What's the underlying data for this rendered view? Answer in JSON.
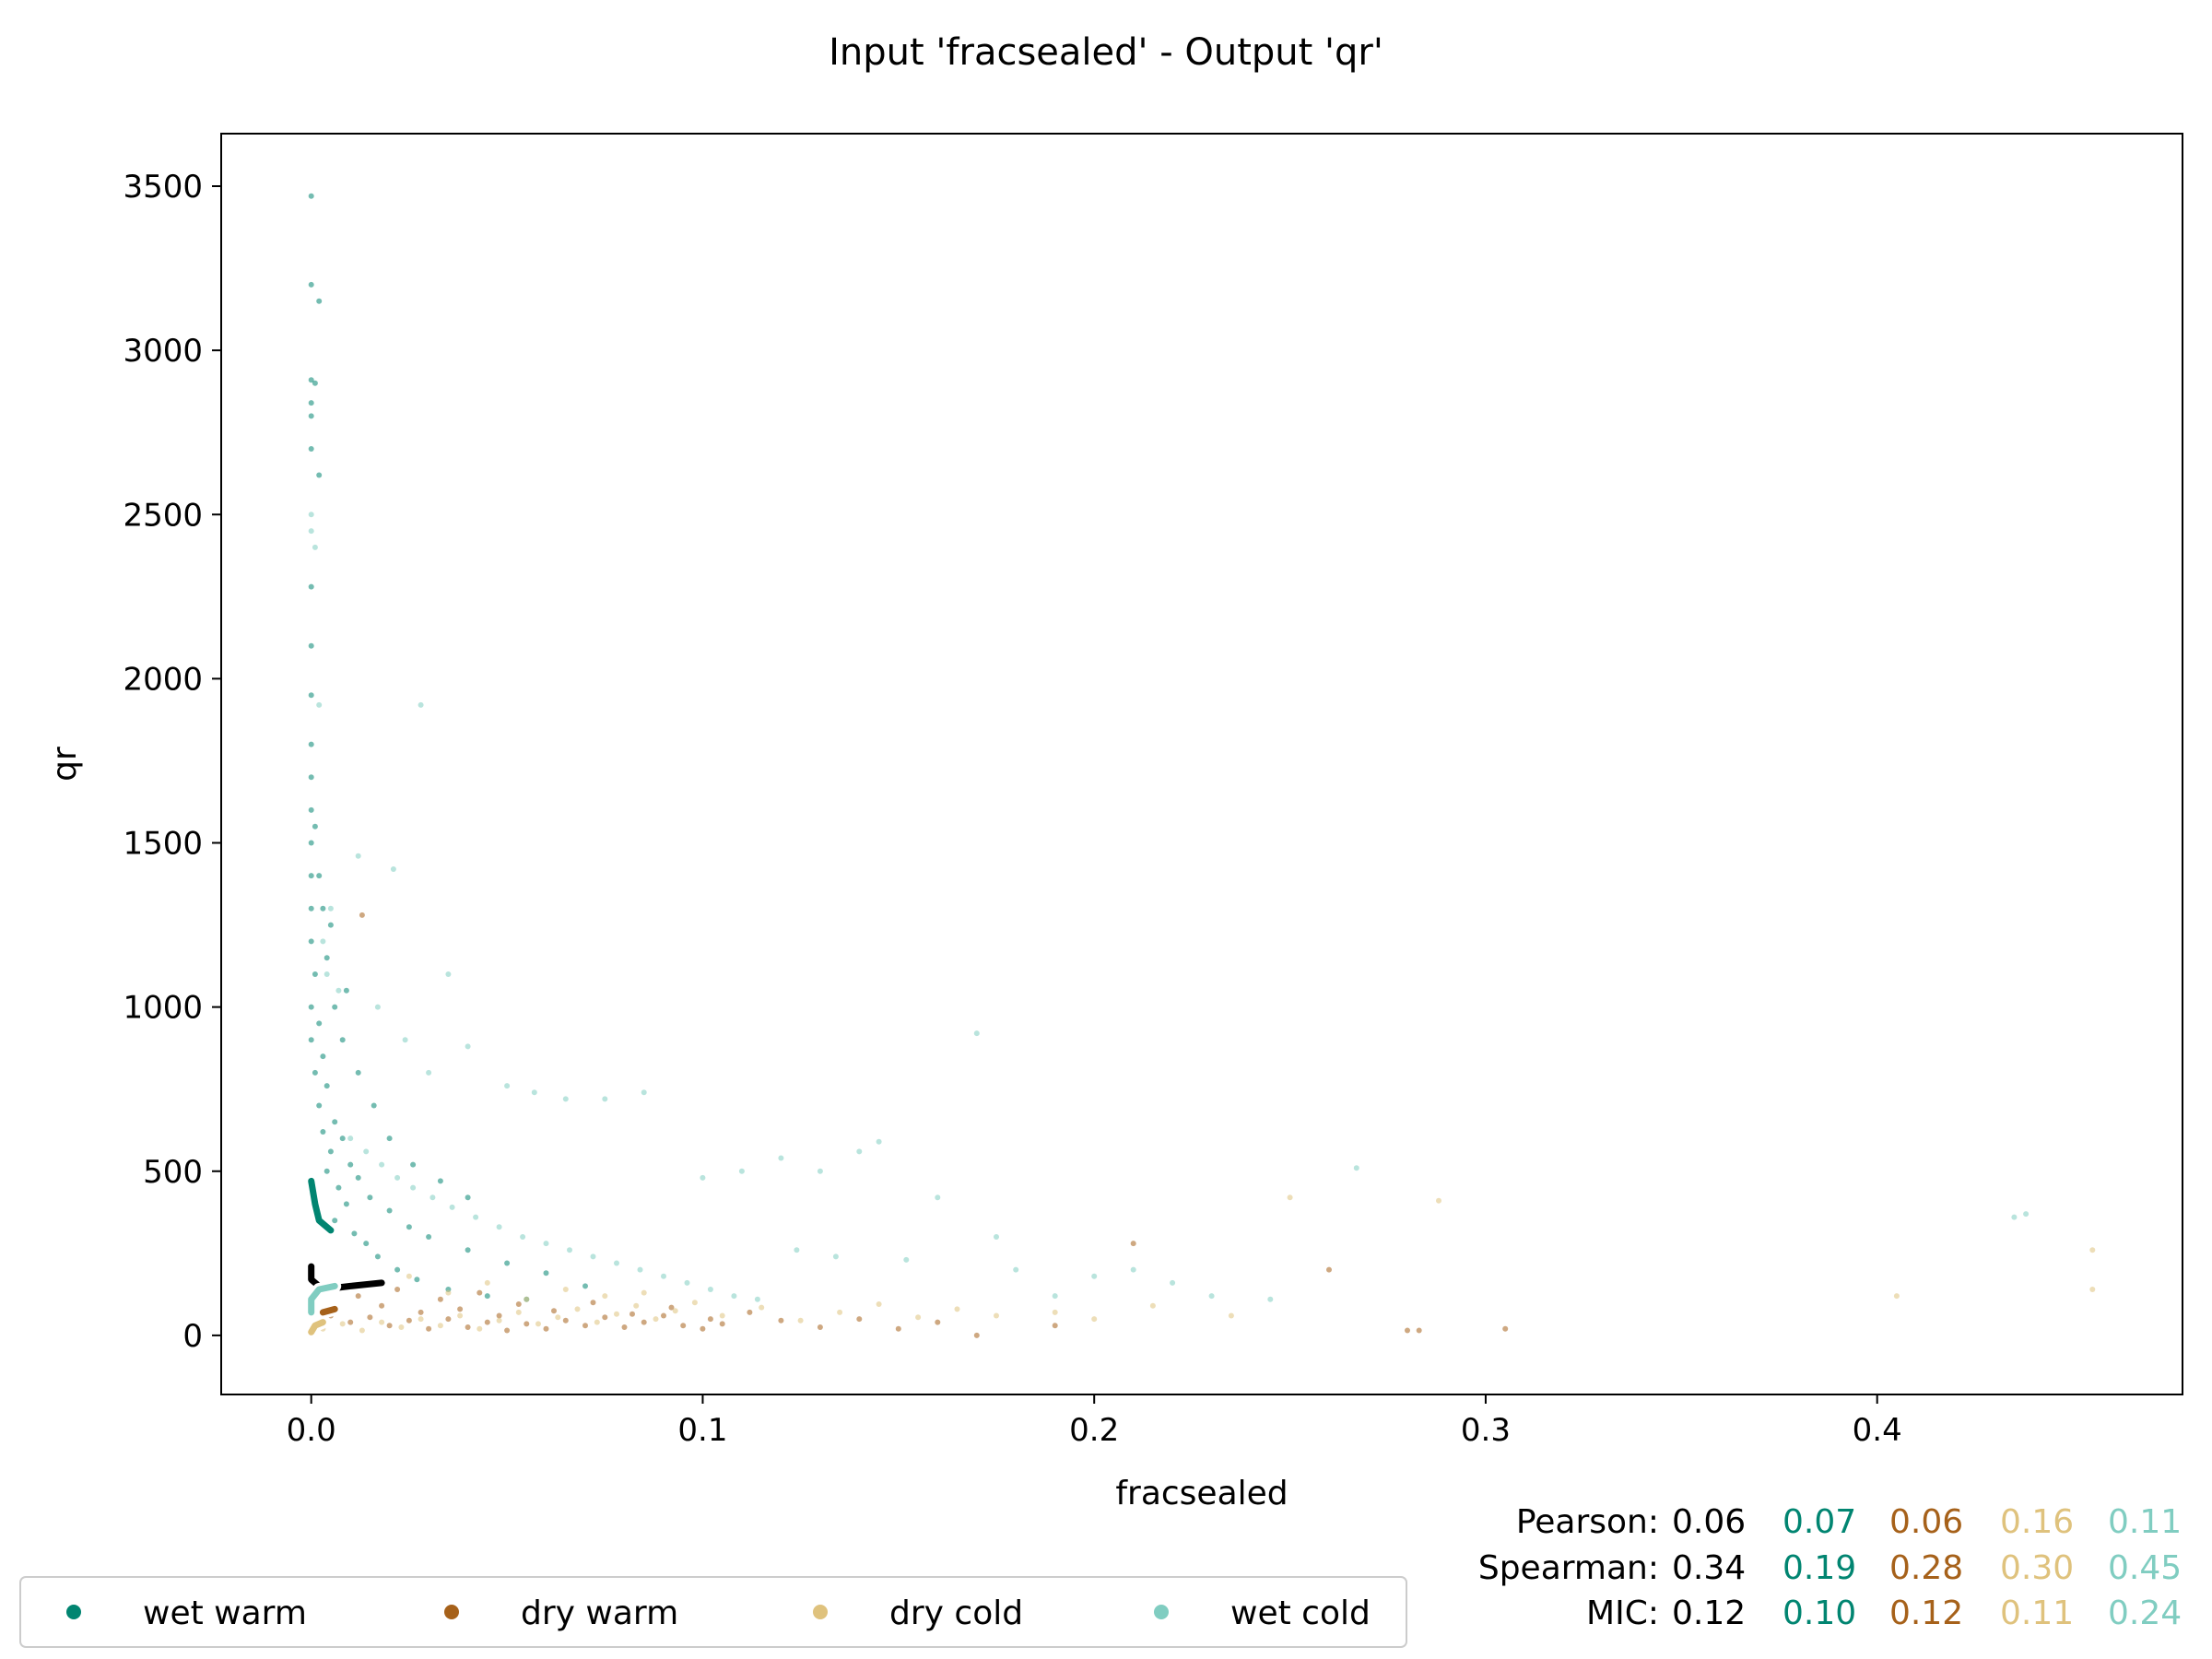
{
  "colors": {
    "wet_warm": "#018571",
    "dry_warm": "#a6611a",
    "dry_cold": "#dfc27d",
    "wet_cold": "#80cdc1",
    "all": "#000000"
  },
  "chart_data": {
    "type": "scatter",
    "title": "Input 'fracsealed' - Output 'qr'",
    "xlabel": "fracsealed",
    "ylabel": "qr",
    "xlim": [
      -0.023,
      0.478
    ],
    "ylim": [
      -180,
      3660
    ],
    "xticks": [
      0.0,
      0.1,
      0.2,
      0.3,
      0.4
    ],
    "xtick_labels": [
      "0.0",
      "0.1",
      "0.2",
      "0.3",
      "0.4"
    ],
    "yticks": [
      0,
      500,
      1000,
      1500,
      2000,
      2500,
      3000,
      3500
    ],
    "ytick_labels": [
      "0",
      "500",
      "1000",
      "1500",
      "2000",
      "2500",
      "3000",
      "3500"
    ],
    "grid": false,
    "legend_position": "bottom-left",
    "series": [
      {
        "name": "wet warm",
        "color": "#018571",
        "points": [
          [
            0.0,
            3470
          ],
          [
            0.0,
            3200
          ],
          [
            0.002,
            3150
          ],
          [
            0.0,
            2910
          ],
          [
            0.001,
            2900
          ],
          [
            0.0,
            2840
          ],
          [
            0.0,
            2800
          ],
          [
            0.0,
            2700
          ],
          [
            0.002,
            2620
          ],
          [
            0.0,
            2280
          ],
          [
            0.0,
            2100
          ],
          [
            0.0,
            1950
          ],
          [
            0.0,
            1800
          ],
          [
            0.0,
            1700
          ],
          [
            0.0,
            1600
          ],
          [
            0.0,
            1500
          ],
          [
            0.0,
            1400
          ],
          [
            0.0,
            1300
          ],
          [
            0.0,
            1200
          ],
          [
            0.001,
            1100
          ],
          [
            0.0,
            1000
          ],
          [
            0.002,
            950
          ],
          [
            0.0,
            900
          ],
          [
            0.003,
            850
          ],
          [
            0.001,
            800
          ],
          [
            0.004,
            760
          ],
          [
            0.002,
            700
          ],
          [
            0.006,
            650
          ],
          [
            0.003,
            620
          ],
          [
            0.008,
            600
          ],
          [
            0.005,
            560
          ],
          [
            0.01,
            520
          ],
          [
            0.004,
            500
          ],
          [
            0.012,
            480
          ],
          [
            0.007,
            450
          ],
          [
            0.015,
            420
          ],
          [
            0.009,
            400
          ],
          [
            0.02,
            380
          ],
          [
            0.006,
            350
          ],
          [
            0.025,
            330
          ],
          [
            0.011,
            310
          ],
          [
            0.03,
            300
          ],
          [
            0.014,
            280
          ],
          [
            0.04,
            260
          ],
          [
            0.017,
            240
          ],
          [
            0.05,
            220
          ],
          [
            0.022,
            200
          ],
          [
            0.06,
            190
          ],
          [
            0.027,
            170
          ],
          [
            0.07,
            150
          ],
          [
            0.035,
            140
          ],
          [
            0.045,
            120
          ],
          [
            0.055,
            110
          ],
          [
            0.003,
            1300
          ],
          [
            0.004,
            1150
          ],
          [
            0.006,
            1000
          ],
          [
            0.008,
            900
          ],
          [
            0.012,
            800
          ],
          [
            0.016,
            700
          ],
          [
            0.02,
            600
          ],
          [
            0.026,
            520
          ],
          [
            0.033,
            470
          ],
          [
            0.04,
            420
          ],
          [
            0.001,
            1550
          ],
          [
            0.002,
            1400
          ],
          [
            0.005,
            1250
          ],
          [
            0.009,
            1050
          ]
        ]
      },
      {
        "name": "dry warm",
        "color": "#a6611a",
        "points": [
          [
            0.005,
            60
          ],
          [
            0.01,
            40
          ],
          [
            0.015,
            55
          ],
          [
            0.02,
            30
          ],
          [
            0.025,
            45
          ],
          [
            0.03,
            20
          ],
          [
            0.035,
            50
          ],
          [
            0.04,
            25
          ],
          [
            0.045,
            40
          ],
          [
            0.05,
            15
          ],
          [
            0.055,
            35
          ],
          [
            0.06,
            20
          ],
          [
            0.065,
            45
          ],
          [
            0.07,
            30
          ],
          [
            0.075,
            55
          ],
          [
            0.08,
            25
          ],
          [
            0.085,
            40
          ],
          [
            0.09,
            60
          ],
          [
            0.095,
            30
          ],
          [
            0.1,
            20
          ],
          [
            0.105,
            35
          ],
          [
            0.12,
            45
          ],
          [
            0.13,
            25
          ],
          [
            0.14,
            50
          ],
          [
            0.15,
            20
          ],
          [
            0.16,
            40
          ],
          [
            0.17,
            0
          ],
          [
            0.19,
            30
          ],
          [
            0.21,
            280
          ],
          [
            0.26,
            200
          ],
          [
            0.28,
            15
          ],
          [
            0.283,
            15
          ],
          [
            0.305,
            20
          ],
          [
            0.012,
            120
          ],
          [
            0.018,
            90
          ],
          [
            0.022,
            140
          ],
          [
            0.028,
            70
          ],
          [
            0.033,
            110
          ],
          [
            0.038,
            80
          ],
          [
            0.043,
            130
          ],
          [
            0.048,
            60
          ],
          [
            0.053,
            95
          ],
          [
            0.062,
            75
          ],
          [
            0.072,
            100
          ],
          [
            0.082,
            65
          ],
          [
            0.092,
            85
          ],
          [
            0.013,
            1280
          ],
          [
            0.102,
            50
          ],
          [
            0.112,
            70
          ]
        ]
      },
      {
        "name": "dry cold",
        "color": "#dfc27d",
        "points": [
          [
            0.003,
            20
          ],
          [
            0.008,
            35
          ],
          [
            0.013,
            15
          ],
          [
            0.018,
            40
          ],
          [
            0.023,
            25
          ],
          [
            0.028,
            50
          ],
          [
            0.033,
            30
          ],
          [
            0.038,
            60
          ],
          [
            0.043,
            20
          ],
          [
            0.048,
            45
          ],
          [
            0.053,
            70
          ],
          [
            0.058,
            35
          ],
          [
            0.063,
            55
          ],
          [
            0.068,
            80
          ],
          [
            0.073,
            40
          ],
          [
            0.078,
            65
          ],
          [
            0.083,
            90
          ],
          [
            0.088,
            50
          ],
          [
            0.093,
            75
          ],
          [
            0.098,
            100
          ],
          [
            0.105,
            60
          ],
          [
            0.115,
            85
          ],
          [
            0.125,
            45
          ],
          [
            0.135,
            70
          ],
          [
            0.145,
            95
          ],
          [
            0.155,
            55
          ],
          [
            0.165,
            80
          ],
          [
            0.175,
            60
          ],
          [
            0.19,
            70
          ],
          [
            0.2,
            50
          ],
          [
            0.215,
            90
          ],
          [
            0.235,
            60
          ],
          [
            0.405,
            120
          ],
          [
            0.455,
            260
          ],
          [
            0.455,
            140
          ],
          [
            0.25,
            420
          ],
          [
            0.288,
            410
          ],
          [
            0.015,
            150
          ],
          [
            0.025,
            180
          ],
          [
            0.035,
            130
          ],
          [
            0.045,
            160
          ],
          [
            0.055,
            110
          ],
          [
            0.065,
            140
          ],
          [
            0.075,
            120
          ],
          [
            0.085,
            130
          ]
        ]
      },
      {
        "name": "wet cold",
        "color": "#80cdc1",
        "points": [
          [
            0.0,
            2500
          ],
          [
            0.0,
            2450
          ],
          [
            0.001,
            2400
          ],
          [
            0.002,
            1920
          ],
          [
            0.028,
            1920
          ],
          [
            0.012,
            1460
          ],
          [
            0.021,
            1420
          ],
          [
            0.005,
            1300
          ],
          [
            0.003,
            1200
          ],
          [
            0.004,
            1100
          ],
          [
            0.007,
            1050
          ],
          [
            0.035,
            1100
          ],
          [
            0.017,
            1000
          ],
          [
            0.024,
            900
          ],
          [
            0.04,
            880
          ],
          [
            0.03,
            800
          ],
          [
            0.05,
            760
          ],
          [
            0.057,
            740
          ],
          [
            0.065,
            720
          ],
          [
            0.075,
            720
          ],
          [
            0.085,
            740
          ],
          [
            0.17,
            920
          ],
          [
            0.1,
            480
          ],
          [
            0.11,
            500
          ],
          [
            0.12,
            540
          ],
          [
            0.13,
            500
          ],
          [
            0.14,
            560
          ],
          [
            0.145,
            590
          ],
          [
            0.16,
            420
          ],
          [
            0.175,
            300
          ],
          [
            0.18,
            200
          ],
          [
            0.19,
            120
          ],
          [
            0.2,
            180
          ],
          [
            0.21,
            200
          ],
          [
            0.22,
            160
          ],
          [
            0.23,
            120
          ],
          [
            0.245,
            110
          ],
          [
            0.267,
            510
          ],
          [
            0.435,
            360
          ],
          [
            0.438,
            370
          ],
          [
            0.01,
            600
          ],
          [
            0.014,
            560
          ],
          [
            0.018,
            520
          ],
          [
            0.022,
            480
          ],
          [
            0.026,
            450
          ],
          [
            0.031,
            420
          ],
          [
            0.036,
            390
          ],
          [
            0.042,
            360
          ],
          [
            0.048,
            330
          ],
          [
            0.054,
            300
          ],
          [
            0.06,
            280
          ],
          [
            0.066,
            260
          ],
          [
            0.072,
            240
          ],
          [
            0.078,
            220
          ],
          [
            0.084,
            200
          ],
          [
            0.09,
            180
          ],
          [
            0.096,
            160
          ],
          [
            0.102,
            140
          ],
          [
            0.108,
            120
          ],
          [
            0.114,
            110
          ],
          [
            0.124,
            260
          ],
          [
            0.134,
            240
          ],
          [
            0.152,
            230
          ]
        ]
      }
    ],
    "trend_lines": [
      {
        "name": "wet warm",
        "color": "#018571",
        "points": [
          [
            0.0,
            470
          ],
          [
            0.001,
            400
          ],
          [
            0.002,
            350
          ],
          [
            0.005,
            320
          ]
        ]
      },
      {
        "name": "all",
        "color": "#000000",
        "points": [
          [
            0.0,
            210
          ],
          [
            0.0,
            170
          ],
          [
            0.003,
            140
          ],
          [
            0.01,
            150
          ],
          [
            0.018,
            160
          ]
        ]
      },
      {
        "name": "wet cold",
        "color": "#80cdc1",
        "points": [
          [
            0.0,
            70
          ],
          [
            0.0,
            110
          ],
          [
            0.002,
            140
          ],
          [
            0.006,
            150
          ]
        ]
      },
      {
        "name": "dry warm",
        "color": "#a6611a",
        "points": [
          [
            0.003,
            70
          ],
          [
            0.006,
            80
          ]
        ]
      },
      {
        "name": "dry cold",
        "color": "#dfc27d",
        "points": [
          [
            0.0,
            10
          ],
          [
            0.001,
            30
          ],
          [
            0.003,
            40
          ]
        ]
      }
    ],
    "legend": [
      {
        "label": "wet warm",
        "color": "#018571"
      },
      {
        "label": "dry warm",
        "color": "#a6611a"
      },
      {
        "label": "dry cold",
        "color": "#dfc27d"
      },
      {
        "label": "wet cold",
        "color": "#80cdc1"
      }
    ],
    "stats": [
      {
        "label": "Pearson:",
        "values": [
          "0.06",
          "0.07",
          "0.06",
          "0.16",
          "0.11"
        ]
      },
      {
        "label": "Spearman:",
        "values": [
          "0.34",
          "0.19",
          "0.28",
          "0.30",
          "0.45"
        ]
      },
      {
        "label": "MIC:",
        "values": [
          "0.12",
          "0.10",
          "0.12",
          "0.11",
          "0.24"
        ]
      }
    ],
    "stats_colors": [
      "#000000",
      "#018571",
      "#a6611a",
      "#dfc27d",
      "#80cdc1"
    ]
  }
}
